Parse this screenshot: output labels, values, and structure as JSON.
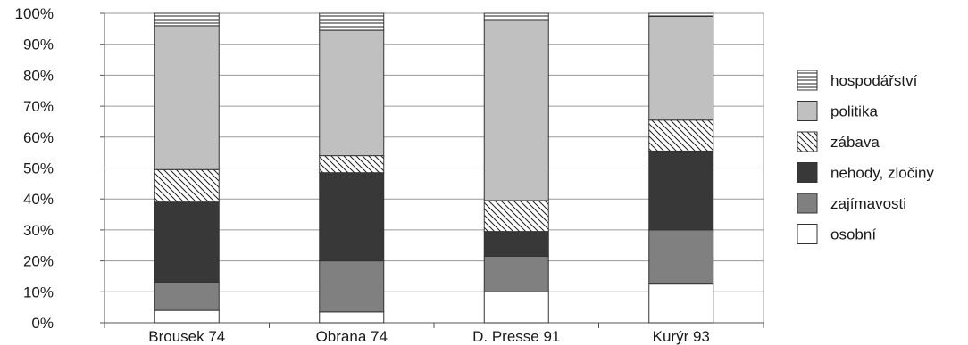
{
  "chart_data": {
    "type": "bar",
    "stacked": true,
    "title": "",
    "xlabel": "",
    "ylabel": "",
    "ylim": [
      0,
      100
    ],
    "y_ticks": [
      "0%",
      "10%",
      "20%",
      "30%",
      "40%",
      "50%",
      "60%",
      "70%",
      "80%",
      "90%",
      "100%"
    ],
    "grid": true,
    "legend_position": "right",
    "categories": [
      "Brousek 74",
      "Obrana 74",
      "D. Presse 91",
      "Kurýr 93"
    ],
    "series": [
      {
        "name": "osobní",
        "values": [
          4,
          3.5,
          10,
          12.5
        ],
        "color": "#ffffff",
        "pattern": "solid"
      },
      {
        "name": "zajímavosti",
        "values": [
          9,
          16.5,
          11.5,
          17.5
        ],
        "color": "#808080",
        "pattern": "solid"
      },
      {
        "name": "nehody, zločiny",
        "values": [
          26,
          28.5,
          8,
          25.5
        ],
        "color": "#383838",
        "pattern": "solid"
      },
      {
        "name": "zábava",
        "values": [
          10.5,
          5.5,
          10,
          10
        ],
        "color": "#ffffff",
        "pattern": "diagonal-hatch"
      },
      {
        "name": "politika",
        "values": [
          46.5,
          40.5,
          58.5,
          33.5
        ],
        "color": "#c0c0c0",
        "pattern": "solid"
      },
      {
        "name": "hospodářství",
        "values": [
          4,
          5.5,
          2,
          1
        ],
        "color": "#ffffff",
        "pattern": "horizontal-lines"
      }
    ],
    "legend_order": [
      "hospodářství",
      "politika",
      "zábava",
      "nehody, zločiny",
      "zajímavosti",
      "osobní"
    ]
  }
}
